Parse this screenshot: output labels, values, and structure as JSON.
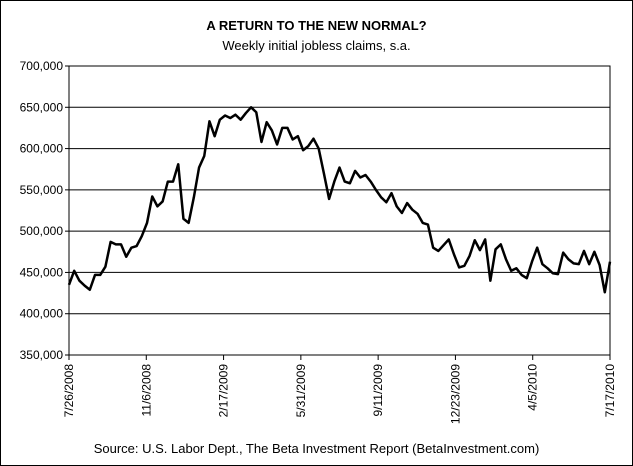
{
  "chart_data": {
    "type": "line",
    "title": "A RETURN TO THE NEW NORMAL?",
    "subtitle": "Weekly initial jobless claims, s.a.",
    "source": "Source: U.S. Labor Dept., The Beta Investment Report (BetaInvestment.com)",
    "xlabel": "",
    "ylabel": "",
    "ylim": [
      350000,
      700000
    ],
    "y_ticks": [
      "350,000",
      "400,000",
      "450,000",
      "500,000",
      "550,000",
      "600,000",
      "650,000",
      "700,000"
    ],
    "x_ticks": [
      "7/26/2008",
      "11/6/2008",
      "2/17/2009",
      "5/31/2009",
      "9/11/2009",
      "12/23/2009",
      "4/5/2010",
      "7/17/2010"
    ],
    "grid": "horizontal",
    "series": [
      {
        "values": [
          435000,
          452000,
          440000,
          434000,
          429000,
          447000,
          447000,
          457000,
          487000,
          484000,
          484000,
          469000,
          480000,
          482000,
          494000,
          510000,
          542000,
          530000,
          536000,
          560000,
          560000,
          581000,
          515000,
          510000,
          541000,
          577000,
          591000,
          633000,
          615000,
          635000,
          640000,
          637000,
          641000,
          635000,
          643000,
          650000,
          644000,
          608000,
          632000,
          622000,
          605000,
          625000,
          625000,
          611000,
          615000,
          598000,
          603000,
          612000,
          600000,
          570000,
          539000,
          560000,
          577000,
          560000,
          558000,
          573000,
          565000,
          568000,
          560000,
          550000,
          541000,
          535000,
          546000,
          530000,
          522000,
          534000,
          526000,
          521000,
          510000,
          508000,
          480000,
          476000,
          483000,
          490000,
          472000,
          456000,
          458000,
          470000,
          489000,
          477000,
          490000,
          440000,
          478000,
          484000,
          466000,
          452000,
          455000,
          447000,
          443000,
          463000,
          480000,
          460000,
          455000,
          449000,
          448000,
          474000,
          466000,
          461000,
          460000,
          476000,
          460000,
          475000,
          459000,
          426000,
          463000
        ]
      }
    ]
  }
}
